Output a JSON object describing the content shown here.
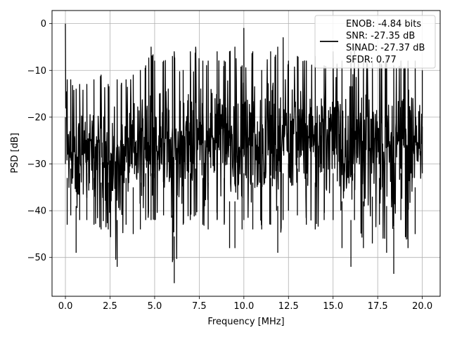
{
  "chart_data": {
    "type": "line",
    "title": "",
    "xlabel": "Frequency [MHz]",
    "ylabel": "PSD [dB]",
    "xlim": [
      -0.75,
      21.0
    ],
    "ylim": [
      -58.3,
      2.8
    ],
    "xticks": [
      0.0,
      2.5,
      5.0,
      7.5,
      10.0,
      12.5,
      15.0,
      17.5,
      20.0
    ],
    "xtick_labels": [
      "0.0",
      "2.5",
      "5.0",
      "7.5",
      "10.0",
      "12.5",
      "15.0",
      "17.5",
      "20.0"
    ],
    "yticks": [
      0,
      -10,
      -20,
      -30,
      -40,
      -50
    ],
    "ytick_labels": [
      "0",
      "−10",
      "−20",
      "−30",
      "−40",
      "−50"
    ],
    "grid": true,
    "legend": {
      "placement": "upper right",
      "entries": [
        "ENOB: -4.84 bits",
        "SNR: -27.35 dB",
        "SINAD: -27.37 dB",
        "SFDR: 0.77"
      ]
    },
    "series": [
      {
        "color": "#000000",
        "description": "dense noisy PSD trace, approx. envelope",
        "x": [
          0.0,
          0.1,
          0.3,
          0.6,
          0.8,
          1.2,
          1.6,
          2.0,
          2.4,
          2.9,
          3.4,
          3.8,
          4.2,
          4.5,
          4.8,
          5.0,
          5.5,
          6.0,
          6.1,
          6.6,
          7.0,
          7.3,
          7.7,
          8.0,
          8.5,
          8.9,
          9.2,
          9.5,
          9.9,
          10.0,
          10.5,
          11.0,
          11.5,
          11.9,
          12.2,
          12.5,
          13.0,
          13.5,
          14.0,
          14.5,
          15.0,
          15.5,
          16.0,
          16.2,
          16.7,
          17.2,
          17.6,
          18.0,
          18.4,
          18.8,
          19.2,
          19.6,
          20.0
        ],
        "upper": [
          0,
          -12,
          -12,
          -14,
          -13,
          -13,
          -12,
          -11,
          -13,
          -12,
          -12,
          -11,
          -10,
          -9,
          -5,
          -8,
          -8,
          -7,
          -6,
          -10,
          -6,
          -5,
          -8,
          -8,
          -6,
          -8,
          -6,
          -5,
          -9,
          -1,
          -6,
          -10,
          -6,
          -5,
          -3,
          -8,
          -7,
          -8,
          -7,
          -9,
          -6,
          -8,
          -6,
          -5,
          -7,
          -8,
          -8,
          -7,
          -9,
          -8,
          -8,
          -8,
          -10
        ],
        "lower": [
          -30,
          -43,
          -41,
          -49,
          -42,
          -42,
          -43,
          -44,
          -44,
          -52,
          -43,
          -45,
          -44,
          -42,
          -42,
          -42,
          -41,
          -51,
          -55.5,
          -43,
          -42,
          -41,
          -43,
          -44,
          -42,
          -43,
          -48,
          -48,
          -44,
          -42,
          -44,
          -44,
          -43,
          -49,
          -42,
          -40,
          -41,
          -43,
          -44,
          -42,
          -42,
          -48,
          -52,
          -42,
          -48,
          -47,
          -43,
          -49,
          -53.5,
          -42,
          -48,
          -45,
          -32
        ]
      }
    ]
  }
}
